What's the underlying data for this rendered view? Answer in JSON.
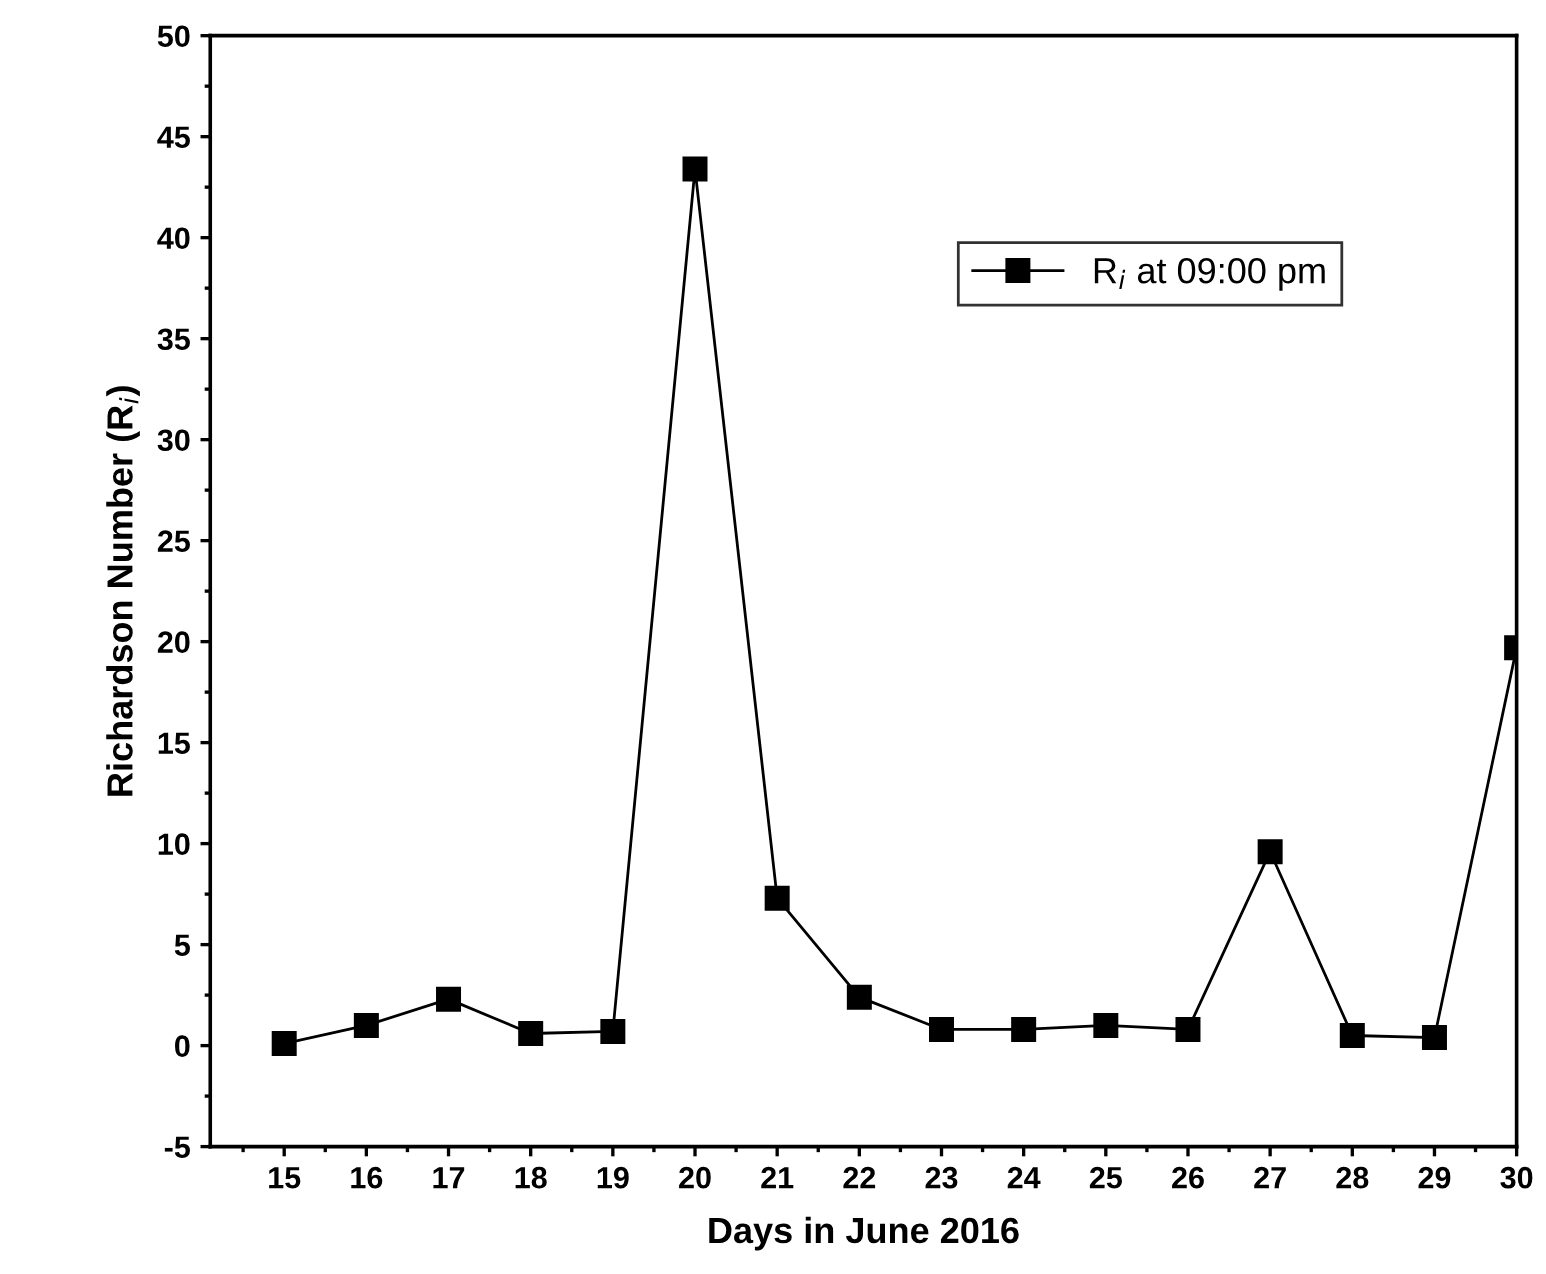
{
  "chart_data": {
    "type": "line",
    "xlabel": "Days in June 2016",
    "ylabel": "Richardson Number (R$_{i}$)",
    "x": [
      15,
      16,
      17,
      18,
      19,
      20,
      21,
      22,
      23,
      24,
      25,
      26,
      27,
      28,
      29,
      30
    ],
    "series": [
      {
        "name": "R$_{i}$ at 09:00 pm",
        "color": "#000000",
        "values": [
          0.1,
          1.0,
          2.3,
          0.6,
          0.7,
          43.4,
          7.3,
          2.4,
          0.8,
          0.8,
          1.0,
          0.8,
          9.6,
          0.5,
          0.4,
          19.7
        ]
      }
    ],
    "xlim": [
      14.1,
      30
    ],
    "xticks": [
      15,
      16,
      17,
      18,
      19,
      20,
      21,
      22,
      23,
      24,
      25,
      26,
      27,
      28,
      29,
      30
    ],
    "ylim": [
      -5,
      50
    ],
    "yticks": [
      -5,
      0,
      5,
      10,
      15,
      20,
      25,
      30,
      35,
      40,
      45,
      50
    ],
    "marker": "square",
    "line_style": "solid",
    "grid": false,
    "legend": "top right"
  }
}
